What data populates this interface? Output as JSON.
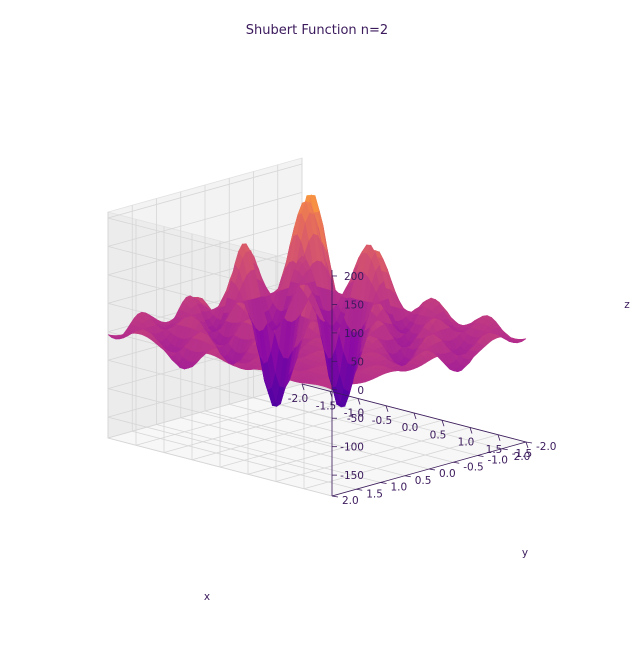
{
  "chart_data": {
    "type": "surface",
    "title": "Shubert Function n=2",
    "xlabel": "x",
    "ylabel": "y",
    "zlabel": "z",
    "function": "f(x,y) = [Σ_{i=1..5} i·cos((i+1)x+i)] · [Σ_{i=1..5} i·cos((i+1)y+i)]",
    "x_range": [
      -2.0,
      2.0
    ],
    "y_range": [
      -2.0,
      2.0
    ],
    "zlim": [
      -186.7,
      210.5
    ],
    "x_ticks": [
      "-2.0",
      "-1.5",
      "-1.0",
      "-0.5",
      "0.0",
      "0.5",
      "1.0",
      "1.5",
      "2.0"
    ],
    "y_ticks": [
      "-2.0",
      "-1.5",
      "-1.0",
      "-0.5",
      "0.0",
      "0.5",
      "1.0",
      "1.5",
      "2.0"
    ],
    "z_ticks": [
      "-150",
      "-100",
      "-50",
      "0",
      "50",
      "100",
      "150",
      "200"
    ],
    "colormap": "plasma",
    "colors": {
      "text": "#3b1a5c",
      "grid": "#d6d6d6",
      "pane": "#f2f2f2"
    }
  }
}
